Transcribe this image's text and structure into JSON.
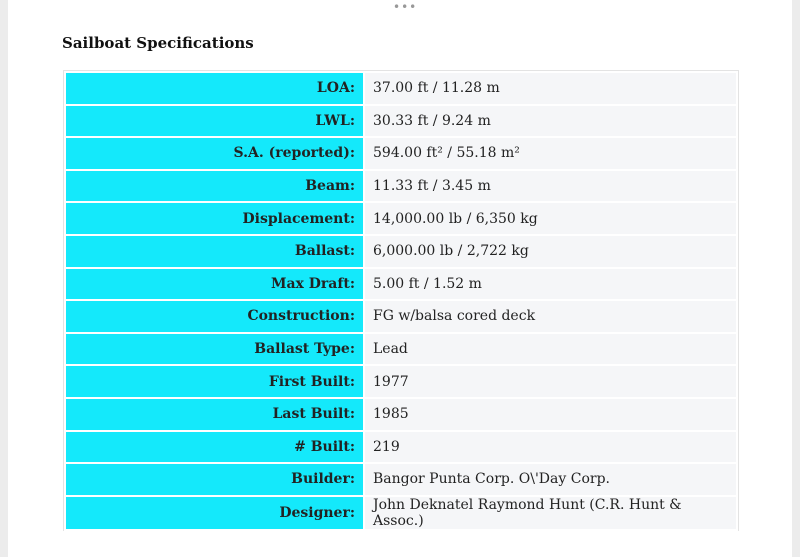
{
  "title": "Sailboat Specifications",
  "table": {
    "rows": [
      [
        "LOA:",
        "37.00 ft / 11.28 m"
      ],
      [
        "LWL:",
        "30.33 ft / 9.24 m"
      ],
      [
        "S.A. (reported):",
        "594.00 ft² / 55.18 m²"
      ],
      [
        "Beam:",
        "11.33 ft / 3.45 m"
      ],
      [
        "Displacement:",
        "14,000.00 lb / 6,350 kg"
      ],
      [
        "Ballast:",
        "6,000.00 lb / 2,722 kg"
      ],
      [
        "Max Draft:",
        "5.00 ft / 1.52 m"
      ],
      [
        "Construction:",
        "FG w/balsa cored deck"
      ],
      [
        "Ballast Type:",
        "Lead"
      ],
      [
        "First Built:",
        "1977"
      ],
      [
        "Last Built:",
        "1985"
      ],
      [
        "# Built:",
        "219"
      ],
      [
        "Builder:",
        "Bangor Punta Corp. O\\'Day Corp."
      ],
      [
        "Designer:",
        "John Deknatel Raymond Hunt (C.R. Hunt & Assoc.)"
      ]
    ]
  }
}
